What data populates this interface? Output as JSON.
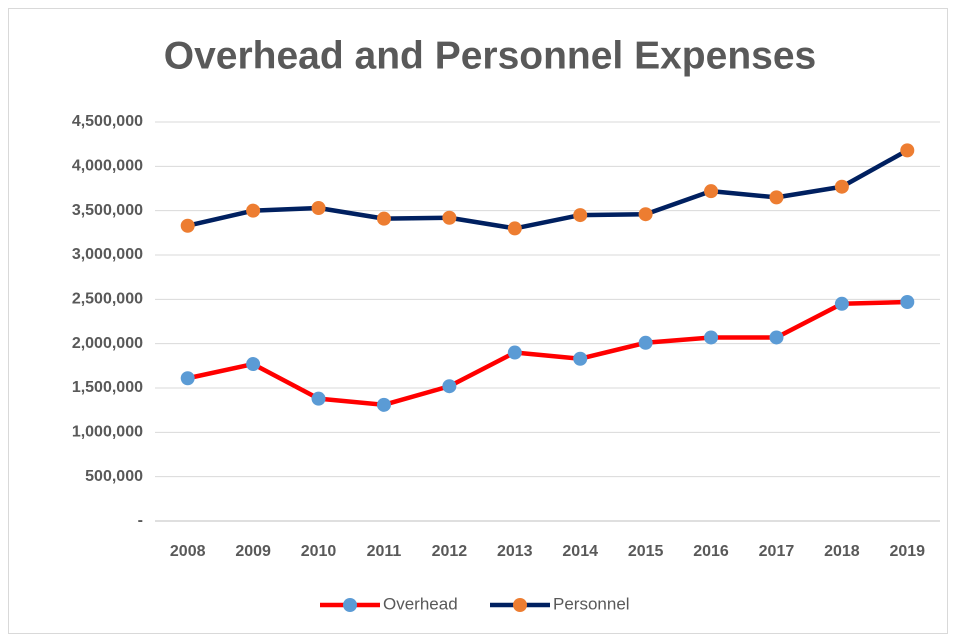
{
  "chart_data": {
    "type": "line",
    "title": "Overhead and Personnel Expenses",
    "categories": [
      "2008",
      "2009",
      "2010",
      "2011",
      "2012",
      "2013",
      "2014",
      "2015",
      "2016",
      "2017",
      "2018",
      "2019"
    ],
    "series": [
      {
        "name": "Overhead",
        "color": "#ff0000",
        "marker_color": "#5b9bd5",
        "values": [
          1610000,
          1770000,
          1380000,
          1310000,
          1520000,
          1900000,
          1830000,
          2010000,
          2070000,
          2070000,
          2450000,
          2470000
        ]
      },
      {
        "name": "Personnel",
        "color": "#002060",
        "marker_color": "#ed7d31",
        "values": [
          3330000,
          3500000,
          3530000,
          3410000,
          3420000,
          3300000,
          3450000,
          3460000,
          3720000,
          3650000,
          3770000,
          4180000
        ]
      }
    ],
    "ylim": [
      0,
      4500000
    ],
    "yticks": [
      {
        "value": 0,
        "label": "-"
      },
      {
        "value": 500000,
        "label": "500,000"
      },
      {
        "value": 1000000,
        "label": "1,000,000"
      },
      {
        "value": 1500000,
        "label": "1,500,000"
      },
      {
        "value": 2000000,
        "label": "2,000,000"
      },
      {
        "value": 2500000,
        "label": "2,500,000"
      },
      {
        "value": 3000000,
        "label": "3,000,000"
      },
      {
        "value": 3500000,
        "label": "3,500,000"
      },
      {
        "value": 4000000,
        "label": "4,000,000"
      },
      {
        "value": 4500000,
        "label": "4,500,000"
      }
    ],
    "grid": true,
    "legend": "bottom"
  }
}
